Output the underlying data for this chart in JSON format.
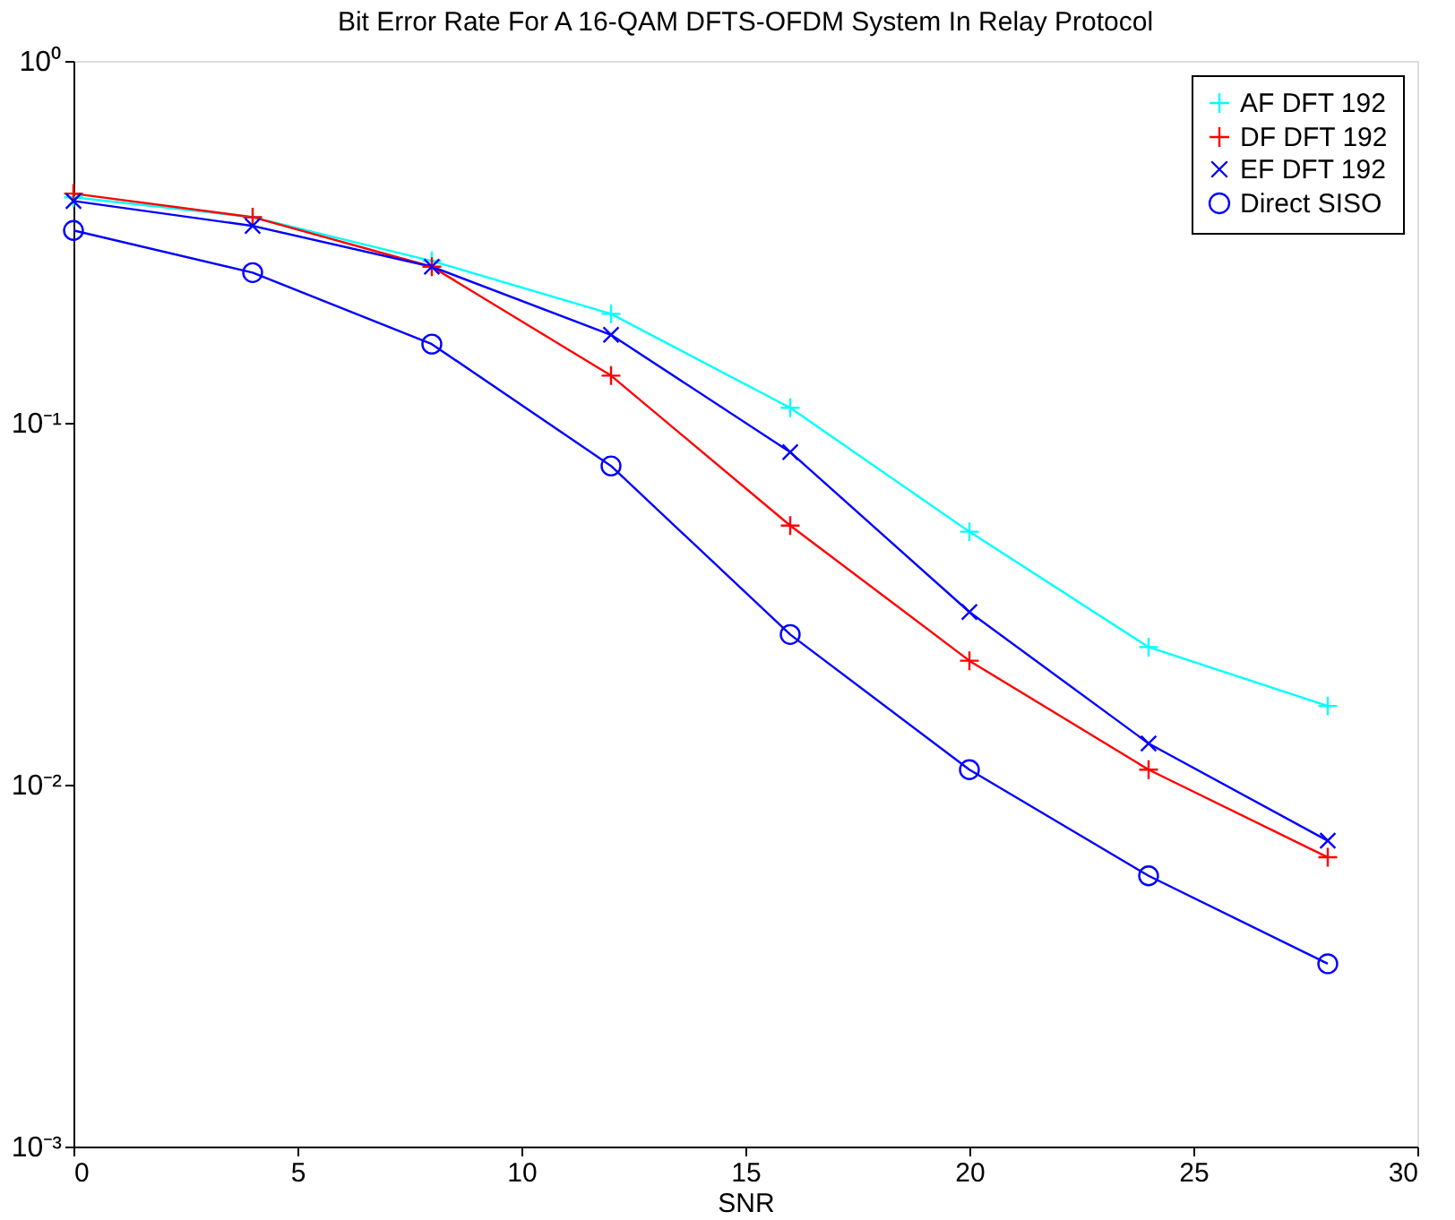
{
  "chart_data": {
    "type": "line",
    "title": "Bit Error Rate For A 16-QAM DFTS-OFDM System In Relay Protocol",
    "xlabel": "SNR",
    "x": [
      0,
      4,
      8,
      12,
      16,
      20,
      24,
      28
    ],
    "series": [
      {
        "name": "AF DFT 192",
        "color": "#00ffff",
        "marker": "cross",
        "values": [
          0.42,
          0.37,
          0.28,
          0.2,
          0.11,
          0.05,
          0.024,
          0.0165
        ]
      },
      {
        "name": "DF DFT 192",
        "color": "#ff0000",
        "marker": "cross",
        "values": [
          0.43,
          0.37,
          0.27,
          0.135,
          0.052,
          0.022,
          0.011,
          0.0063
        ]
      },
      {
        "name": "EF DFT 192",
        "color": "#0000ff",
        "marker": "x",
        "values": [
          0.41,
          0.35,
          0.27,
          0.175,
          0.083,
          0.03,
          0.013,
          0.007
        ]
      },
      {
        "name": "Direct SISO",
        "color": "#0000ff",
        "marker": "circle",
        "values": [
          0.34,
          0.26,
          0.165,
          0.076,
          0.026,
          0.011,
          0.0056,
          0.0032
        ]
      }
    ],
    "log": true,
    "xlim": [
      0,
      30
    ],
    "xticks": [
      0,
      5,
      10,
      15,
      20,
      25,
      30
    ],
    "ylim": [
      0.001,
      1
    ],
    "yticks": [
      {
        "value": 0.001,
        "label": "10⁻³"
      },
      {
        "value": 0.01,
        "label": "10⁻²"
      },
      {
        "value": 0.1,
        "label": "10⁻¹"
      },
      {
        "value": 1,
        "label": "10⁰"
      }
    ],
    "grid": false,
    "legend": "top right",
    "line_style": "solid"
  }
}
